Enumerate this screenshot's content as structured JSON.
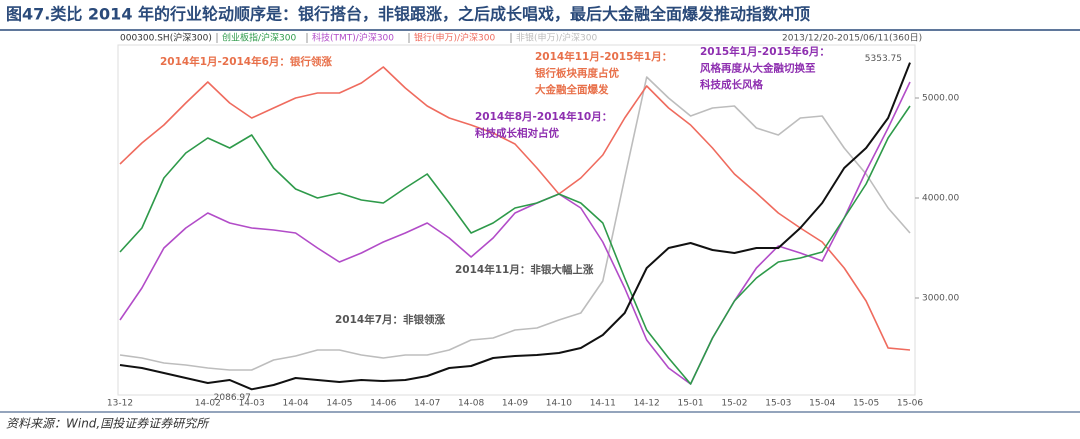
{
  "chart_data": {
    "type": "line",
    "title": "图47.类比 2014 年的行业轮动顺序是：银行搭台，非银跟涨，之后成长唱戏，最后大金融全面爆发推动指数冲顶",
    "date_range": "2013/12/20-2015/06/11(360日)",
    "source": "资料来源：Wind,国投证券证券研究所",
    "categories": [
      "13-12",
      null,
      null,
      null,
      "14-02",
      null,
      "14-03",
      null,
      "14-04",
      null,
      "14-05",
      null,
      "14-06",
      null,
      "14-07",
      null,
      "14-08",
      null,
      "14-09",
      null,
      "14-10",
      null,
      "14-11",
      null,
      "14-12",
      null,
      "15-01",
      null,
      "15-02",
      null,
      "15-03",
      null,
      "15-04",
      null,
      "15-05",
      null,
      "15-06"
    ],
    "ylim": [
      2030,
      5530
    ],
    "yticks": [
      {
        "value": 3000,
        "label": "3000.00"
      },
      {
        "value": 4000,
        "label": "4000.00"
      },
      {
        "value": 5000,
        "label": "5000.00"
      }
    ],
    "series": [
      {
        "name": "000300.SH(沪深300)",
        "color": "#111111",
        "values": [
          2330,
          2300,
          2250,
          2200,
          2150,
          2180,
          2086.97,
          2130,
          2200,
          2180,
          2160,
          2180,
          2170,
          2180,
          2220,
          2300,
          2320,
          2400,
          2420,
          2430,
          2450,
          2500,
          2630,
          2850,
          3300,
          3500,
          3550,
          3480,
          3450,
          3500,
          3500,
          3700,
          3950,
          4300,
          4500,
          4800,
          5353.75
        ]
      },
      {
        "name": "创业板指/沪深300",
        "color": "#2e9a4a",
        "values": [
          3460,
          3700,
          4200,
          4450,
          4600,
          4500,
          4630,
          4300,
          4090,
          4000,
          4050,
          3980,
          3950,
          4100,
          4240,
          3950,
          3650,
          3750,
          3900,
          3950,
          4040,
          3950,
          3750,
          3200,
          2680,
          2400,
          2140,
          2600,
          2970,
          3200,
          3360,
          3400,
          3460,
          3800,
          4140,
          4600,
          4920
        ]
      },
      {
        "name": "科技(TMT)/沪深300",
        "color": "#b24cc8",
        "values": [
          2780,
          3100,
          3500,
          3700,
          3850,
          3750,
          3700,
          3680,
          3650,
          3500,
          3360,
          3450,
          3560,
          3650,
          3750,
          3600,
          3410,
          3600,
          3850,
          3950,
          4040,
          3900,
          3560,
          3100,
          2580,
          2300,
          2140,
          2600,
          2970,
          3300,
          3520,
          3450,
          3370,
          3800,
          4270,
          4700,
          5160
        ]
      },
      {
        "name": "银行(申万)/沪深300",
        "color": "#ef6b5e",
        "values": [
          4340,
          4550,
          4730,
          4950,
          5160,
          4950,
          4800,
          4900,
          5000,
          5050,
          5050,
          5150,
          5310,
          5100,
          4920,
          4800,
          4730,
          4650,
          4540,
          4300,
          4040,
          4200,
          4430,
          4800,
          5120,
          4900,
          4730,
          4500,
          4240,
          4050,
          3850,
          3700,
          3560,
          3300,
          2970,
          2500,
          2480
        ]
      },
      {
        "name": "非银(申万)/沪深300",
        "color": "#bdbdbd",
        "values": [
          2430,
          2400,
          2350,
          2330,
          2300,
          2280,
          2280,
          2380,
          2420,
          2480,
          2480,
          2430,
          2400,
          2430,
          2430,
          2480,
          2580,
          2600,
          2680,
          2700,
          2780,
          2850,
          3170,
          4200,
          5210,
          5000,
          4820,
          4900,
          4920,
          4700,
          4630,
          4800,
          4820,
          4500,
          4240,
          3900,
          3650
        ]
      }
    ],
    "annotations": [
      {
        "lines": [
          "2014年1月-2014年6月：银行领涨"
        ],
        "color": "#e8704a"
      },
      {
        "lines": [
          "2014年11月-2015年1月：",
          "银行板块再度占优",
          "大金融全面爆发"
        ],
        "color": "#e8704a"
      },
      {
        "lines": [
          "2015年1月-2015年6月：",
          "风格再度从大金融切换至",
          "科技成长风格"
        ],
        "color": "#8e2fb0"
      },
      {
        "lines": [
          "2014年8月-2014年10月：",
          "科技成长相对占优"
        ],
        "color": "#8e2fb0"
      },
      {
        "lines": [
          "2014年11月：非银大幅上涨"
        ],
        "color": "#555555"
      },
      {
        "lines": [
          "2014年7月：非银领涨"
        ],
        "color": "#555555"
      }
    ]
  }
}
